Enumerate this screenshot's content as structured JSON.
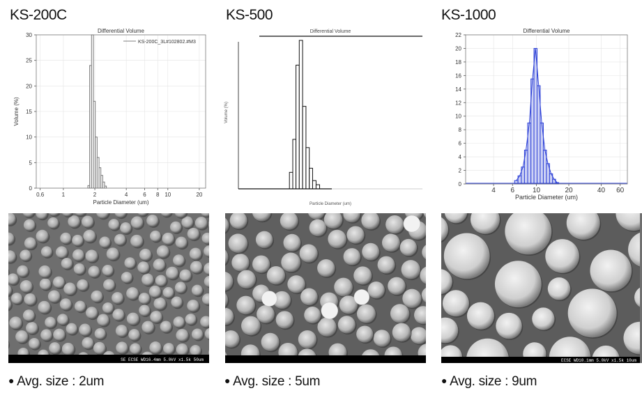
{
  "panels": [
    {
      "title": "KS-200C",
      "caption": "Avg. size : 2um",
      "sem_label": "SE  ECSE  WD16.4mm  5.0kV x1.5k  50um"
    },
    {
      "title": "KS-500",
      "caption": "Avg. size : 5um",
      "sem_label": ""
    },
    {
      "title": "KS-1000",
      "caption": "Avg. size : 9um",
      "sem_label": "ECSE  WD10.1mm 5.0kV x1.5k  10um"
    }
  ],
  "chart_data": [
    {
      "type": "bar",
      "title": "Differential Volume",
      "xlabel": "Particle Diameter (um)",
      "ylabel": "Volume (%)",
      "legend": "KS-200C_3L#102802.#M3",
      "legend_position": "top-right",
      "x_scale": "log",
      "xlim": [
        0.55,
        23
      ],
      "ylim": [
        0,
        30
      ],
      "xticks": [
        0.6,
        1,
        2,
        4,
        6,
        8,
        10,
        20
      ],
      "yticks": [
        0,
        5,
        10,
        15,
        20,
        25,
        30
      ],
      "x": [
        1.75,
        1.82,
        1.9,
        1.98,
        2.06,
        2.15,
        2.24,
        2.33,
        2.43,
        2.53
      ],
      "values": [
        0.5,
        24,
        30,
        17,
        10,
        6,
        4,
        2.5,
        1.2,
        0.4
      ],
      "grid": true
    },
    {
      "type": "bar",
      "title": "Differential Volume",
      "xlabel": "Particle Diameter (um)",
      "ylabel": "Volume (%)",
      "x_scale": "log",
      "xlim": [
        1,
        150
      ],
      "ylim": [
        0,
        37
      ],
      "x": [
        4.2,
        4.6,
        5.0,
        5.5,
        6.0,
        6.6,
        7.2,
        7.9,
        8.7
      ],
      "values": [
        4,
        12,
        30,
        36,
        20,
        10,
        5,
        2,
        1
      ],
      "grid": false
    },
    {
      "type": "bar",
      "title": "Differential Volume",
      "xlabel": "Particle Diameter (um)",
      "ylabel": "",
      "x_scale": "log",
      "xlim": [
        2.2,
        70
      ],
      "ylim": [
        0,
        22
      ],
      "xticks": [
        4,
        6,
        10,
        20,
        40,
        60
      ],
      "yticks": [
        0,
        2,
        4,
        6,
        8,
        10,
        12,
        14,
        16,
        18,
        20,
        22
      ],
      "x": [
        6.5,
        7.0,
        7.5,
        8.0,
        8.6,
        9.2,
        9.8,
        10.5,
        11.2,
        12.0,
        12.8,
        13.7,
        14.6,
        15.6
      ],
      "values": [
        0.5,
        1.2,
        2.5,
        5,
        9,
        15.5,
        20,
        14.5,
        9,
        5,
        3,
        1.5,
        0.7,
        0.2
      ],
      "grid": true
    }
  ]
}
